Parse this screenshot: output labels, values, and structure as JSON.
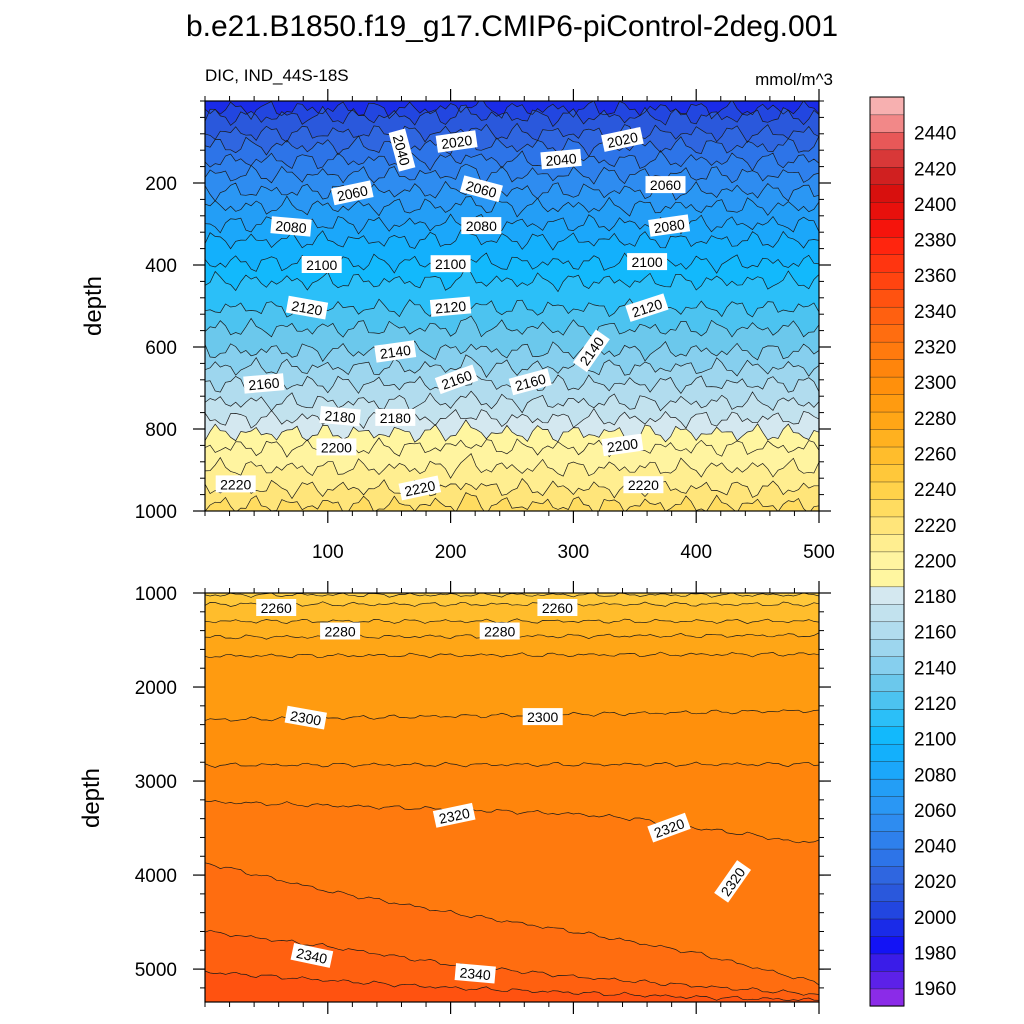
{
  "chart_data": {
    "type": "contour",
    "title": "b.e21.B1850.f19_g17.CMIP6-piControl-2deg.001",
    "variable_label": "DIC, IND_44S-18S",
    "units_label": "mmol/m^3",
    "colorbar": {
      "levels": [
        1950,
        1960,
        1970,
        1980,
        1990,
        2000,
        2010,
        2020,
        2030,
        2040,
        2050,
        2060,
        2070,
        2080,
        2090,
        2100,
        2110,
        2120,
        2130,
        2140,
        2150,
        2160,
        2170,
        2180,
        2190,
        2200,
        2210,
        2220,
        2230,
        2240,
        2250,
        2260,
        2270,
        2280,
        2290,
        2300,
        2310,
        2320,
        2330,
        2340,
        2350,
        2360,
        2370,
        2380,
        2390,
        2400,
        2410,
        2420,
        2430,
        2440,
        2450,
        2460
      ],
      "tick_labels": [
        "1960",
        "1980",
        "2000",
        "2020",
        "2040",
        "2060",
        "2080",
        "2100",
        "2120",
        "2140",
        "2160",
        "2180",
        "2200",
        "2220",
        "2240",
        "2260",
        "2280",
        "2300",
        "2320",
        "2340",
        "2360",
        "2380",
        "2400",
        "2420",
        "2440"
      ],
      "tick_values": [
        1960,
        1980,
        2000,
        2020,
        2040,
        2060,
        2080,
        2100,
        2120,
        2140,
        2160,
        2180,
        2200,
        2220,
        2240,
        2260,
        2280,
        2300,
        2320,
        2340,
        2360,
        2380,
        2400,
        2420,
        2440
      ]
    },
    "panels": [
      {
        "name": "upper",
        "xlim": [
          0,
          500
        ],
        "ylim": [
          1000,
          0
        ],
        "ylabel": "depth",
        "xtick_values": [
          100,
          200,
          300,
          400,
          500
        ],
        "xtick_labels": [
          "100",
          "200",
          "300",
          "400",
          "500"
        ],
        "ytick_values": [
          200,
          400,
          600,
          800,
          1000
        ],
        "ytick_labels": [
          "200",
          "400",
          "600",
          "800",
          "1000"
        ],
        "contour_levels": [
          {
            "value": 2000,
            "depth": 20
          },
          {
            "value": 2010,
            "depth": 38
          },
          {
            "value": 2020,
            "depth": 78
          },
          {
            "value": 2030,
            "depth": 110
          },
          {
            "value": 2040,
            "depth": 145
          },
          {
            "value": 2050,
            "depth": 180
          },
          {
            "value": 2060,
            "depth": 220
          },
          {
            "value": 2070,
            "depth": 258
          },
          {
            "value": 2080,
            "depth": 300
          },
          {
            "value": 2090,
            "depth": 340
          },
          {
            "value": 2100,
            "depth": 395
          },
          {
            "value": 2110,
            "depth": 440
          },
          {
            "value": 2120,
            "depth": 505
          },
          {
            "value": 2130,
            "depth": 555
          },
          {
            "value": 2140,
            "depth": 610
          },
          {
            "value": 2150,
            "depth": 650
          },
          {
            "value": 2160,
            "depth": 690
          },
          {
            "value": 2170,
            "depth": 735
          },
          {
            "value": 2180,
            "depth": 775
          },
          {
            "value": 2190,
            "depth": 810
          },
          {
            "value": 2200,
            "depth": 845
          },
          {
            "value": 2210,
            "depth": 895
          },
          {
            "value": 2220,
            "depth": 945
          },
          {
            "value": 2230,
            "depth": 985
          }
        ],
        "contour_labels": [
          {
            "text": "2020",
            "x": 205,
            "depth": 100,
            "angle": -8
          },
          {
            "text": "2020",
            "x": 340,
            "depth": 95,
            "angle": -12
          },
          {
            "text": "2040",
            "x": 160,
            "depth": 120,
            "angle": 75
          },
          {
            "text": "2040",
            "x": 290,
            "depth": 143,
            "angle": -5
          },
          {
            "text": "2060",
            "x": 120,
            "depth": 225,
            "angle": -12
          },
          {
            "text": "2060",
            "x": 225,
            "depth": 215,
            "angle": 15
          },
          {
            "text": "2060",
            "x": 375,
            "depth": 205,
            "angle": 0
          },
          {
            "text": "2080",
            "x": 70,
            "depth": 307,
            "angle": 5
          },
          {
            "text": "2080",
            "x": 225,
            "depth": 305,
            "angle": 0
          },
          {
            "text": "2080",
            "x": 378,
            "depth": 305,
            "angle": -8
          },
          {
            "text": "2100",
            "x": 95,
            "depth": 400,
            "angle": 0
          },
          {
            "text": "2100",
            "x": 200,
            "depth": 398,
            "angle": 0
          },
          {
            "text": "2100",
            "x": 360,
            "depth": 393,
            "angle": 0
          },
          {
            "text": "2120",
            "x": 83,
            "depth": 505,
            "angle": 10
          },
          {
            "text": "2120",
            "x": 200,
            "depth": 503,
            "angle": -5
          },
          {
            "text": "2120",
            "x": 360,
            "depth": 505,
            "angle": -18
          },
          {
            "text": "2140",
            "x": 155,
            "depth": 612,
            "angle": -8
          },
          {
            "text": "2140",
            "x": 315,
            "depth": 610,
            "angle": -55
          },
          {
            "text": "2160",
            "x": 48,
            "depth": 690,
            "angle": -5
          },
          {
            "text": "2160",
            "x": 205,
            "depth": 680,
            "angle": -20
          },
          {
            "text": "2160",
            "x": 265,
            "depth": 686,
            "angle": -15
          },
          {
            "text": "2180",
            "x": 110,
            "depth": 770,
            "angle": 5
          },
          {
            "text": "2180",
            "x": 155,
            "depth": 773,
            "angle": 0
          },
          {
            "text": "2200",
            "x": 107,
            "depth": 845,
            "angle": 0
          },
          {
            "text": "2200",
            "x": 340,
            "depth": 840,
            "angle": -8
          },
          {
            "text": "2220",
            "x": 25,
            "depth": 935,
            "angle": 0
          },
          {
            "text": "2220",
            "x": 175,
            "depth": 945,
            "angle": -12
          },
          {
            "text": "2220",
            "x": 357,
            "depth": 937,
            "angle": 0
          }
        ]
      },
      {
        "name": "lower",
        "xlim": [
          0,
          500
        ],
        "ylim": [
          5350,
          1000
        ],
        "ylabel": "depth",
        "ytick_values": [
          1000,
          2000,
          3000,
          4000,
          5000
        ],
        "ytick_labels": [
          "1000",
          "2000",
          "3000",
          "4000",
          "5000"
        ],
        "contour_levels": [
          {
            "value": 2250,
            "x": [
              0,
              500
            ],
            "depth": [
              1020,
              1020
            ]
          },
          {
            "value": 2260,
            "x": [
              0,
              500
            ],
            "depth": [
              1120,
              1120
            ]
          },
          {
            "value": 2270,
            "x": [
              0,
              500
            ],
            "depth": [
              1300,
              1300
            ]
          },
          {
            "value": 2280,
            "x": [
              0,
              500
            ],
            "depth": [
              1470,
              1450
            ]
          },
          {
            "value": 2290,
            "x": [
              0,
              500
            ],
            "depth": [
              1670,
              1650
            ]
          },
          {
            "value": 2300,
            "x": [
              0,
              500
            ],
            "depth": [
              2350,
              2250
            ]
          },
          {
            "value": 2310,
            "x": [
              0,
              500
            ],
            "depth": [
              2830,
              2820
            ]
          },
          {
            "value": 2320,
            "x": [
              0,
              100,
              200,
              300,
              350,
              400,
              450,
              480,
              490
            ],
            "depth": [
              3220,
              3260,
              3300,
              3350,
              3400,
              3500,
              3580,
              3650,
              3640
            ]
          },
          {
            "value": 2330,
            "x": [
              0,
              100,
              200,
              300,
              400,
              500
            ],
            "depth": [
              3870,
              4170,
              4400,
              4600,
              4830,
              5150
            ]
          },
          {
            "value": 2340,
            "x": [
              0,
              100,
              200,
              300,
              400,
              500
            ],
            "depth": [
              4600,
              4760,
              4950,
              5080,
              5180,
              5270
            ]
          },
          {
            "value": 2350,
            "x": [
              0,
              100,
              200,
              300,
              400,
              500
            ],
            "depth": [
              5030,
              5120,
              5200,
              5250,
              5300,
              5330
            ]
          }
        ],
        "contour_labels": [
          {
            "text": "2260",
            "x": 58,
            "depth": 1160,
            "angle": 0
          },
          {
            "text": "2260",
            "x": 287,
            "depth": 1160,
            "angle": 0
          },
          {
            "text": "2280",
            "x": 110,
            "depth": 1410,
            "angle": 0
          },
          {
            "text": "2280",
            "x": 240,
            "depth": 1410,
            "angle": 0
          },
          {
            "text": "2300",
            "x": 82,
            "depth": 2330,
            "angle": 10
          },
          {
            "text": "2300",
            "x": 275,
            "depth": 2320,
            "angle": 0
          },
          {
            "text": "2320",
            "x": 203,
            "depth": 3370,
            "angle": -12
          },
          {
            "text": "2320",
            "x": 378,
            "depth": 3500,
            "angle": -20
          },
          {
            "text": "2320",
            "x": 430,
            "depth": 4070,
            "angle": -55
          },
          {
            "text": "2340",
            "x": 87,
            "depth": 4860,
            "angle": 12
          },
          {
            "text": "2340",
            "x": 220,
            "depth": 5050,
            "angle": 5
          }
        ]
      }
    ]
  }
}
